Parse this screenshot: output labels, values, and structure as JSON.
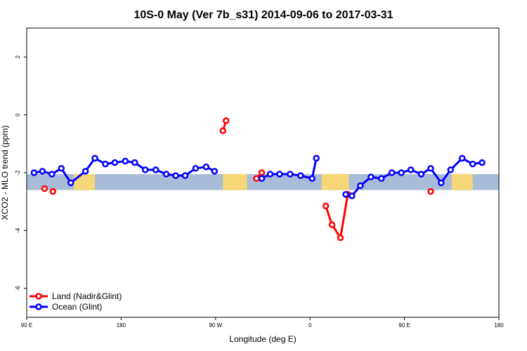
{
  "chart_data": {
    "type": "line",
    "title": "10S-0 May (Ver 7b_s31)   2014-09-06 to 2017-03-31",
    "xlabel": "Longitude (deg E)",
    "ylabel": "XCO2 - MLO trend (ppm)",
    "xlim": [
      90,
      540
    ],
    "ylim": [
      -7.0,
      3.0
    ],
    "x_ticks": [
      {
        "value": 90,
        "label": "90 E"
      },
      {
        "value": 180,
        "label": "180"
      },
      {
        "value": 270,
        "label": "90 W"
      },
      {
        "value": 360,
        "label": "0"
      },
      {
        "value": 450,
        "label": "90 E"
      },
      {
        "value": 540,
        "label": "180"
      }
    ],
    "y_ticks": [
      {
        "value": 2,
        "label": "2"
      },
      {
        "value": 0,
        "label": "0"
      },
      {
        "value": -2,
        "label": "-2"
      },
      {
        "value": -4,
        "label": "-4"
      },
      {
        "value": -6,
        "label": "-6"
      }
    ],
    "band": {
      "y_min": -2.6,
      "y_max": -2.05,
      "ocean_color": "#a8bcd8",
      "land_color": "#f5d778"
    },
    "land_regions": [
      [
        135,
        155
      ],
      [
        141,
        151
      ],
      [
        277,
        300
      ],
      [
        371,
        397
      ],
      [
        495,
        515
      ],
      [
        501,
        511
      ]
    ],
    "legend_position": "bottom-left",
    "series": [
      {
        "name": "Land (Nadir&Glint)",
        "color": "#ff0000",
        "segments": [
          [
            [
              115,
              -2.65
            ]
          ],
          [
            [
              277,
              -0.55
            ],
            [
              280,
              -0.2
            ]
          ],
          [
            [
              314,
              -2.0
            ],
            [
              309,
              -2.2
            ]
          ],
          [
            [
              107,
              -2.55
            ]
          ],
          [
            [
              375,
              -3.15
            ],
            [
              381,
              -3.8
            ],
            [
              389,
              -4.25
            ],
            [
              396,
              -2.75
            ]
          ],
          [
            [
              475,
              -2.65
            ]
          ]
        ]
      },
      {
        "name": "Ocean (Glint)",
        "color": "#0000ff",
        "segments": [
          [
            [
              97,
              -2.0
            ],
            [
              105,
              -1.95
            ],
            [
              114,
              -2.05
            ],
            [
              123,
              -1.85
            ],
            [
              132,
              -2.35
            ],
            [
              146,
              -1.95
            ],
            [
              155,
              -1.5
            ],
            [
              165,
              -1.7
            ],
            [
              174,
              -1.65
            ],
            [
              184,
              -1.6
            ],
            [
              193,
              -1.65
            ],
            [
              203,
              -1.9
            ],
            [
              213,
              -1.9
            ],
            [
              223,
              -2.05
            ],
            [
              232,
              -2.1
            ],
            [
              241,
              -2.1
            ],
            [
              251,
              -1.85
            ],
            [
              261,
              -1.8
            ],
            [
              269,
              -1.95
            ]
          ],
          [
            [
              314,
              -2.2
            ],
            [
              322,
              -2.05
            ],
            [
              331,
              -2.05
            ],
            [
              341,
              -2.05
            ],
            [
              351,
              -2.1
            ],
            [
              362,
              -2.2
            ],
            [
              366,
              -1.5
            ]
          ],
          [
            [
              394,
              -2.75
            ],
            [
              400,
              -2.8
            ],
            [
              408,
              -2.45
            ],
            [
              418,
              -2.15
            ],
            [
              428,
              -2.2
            ],
            [
              438,
              -2.0
            ],
            [
              447,
              -2.0
            ],
            [
              456,
              -1.9
            ],
            [
              466,
              -2.05
            ],
            [
              475,
              -1.85
            ],
            [
              485,
              -2.35
            ],
            [
              494,
              -1.9
            ],
            [
              505,
              -1.5
            ],
            [
              515,
              -1.7
            ],
            [
              524,
              -1.65
            ]
          ]
        ]
      }
    ]
  }
}
